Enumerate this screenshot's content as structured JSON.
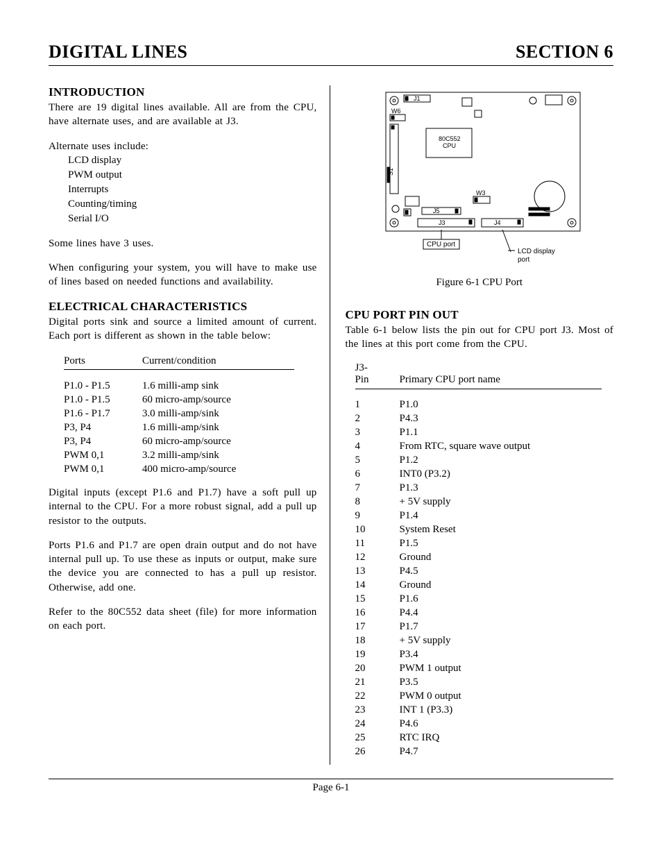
{
  "header": {
    "title_left": "DIGITAL LINES",
    "title_right": "SECTION 6"
  },
  "intro": {
    "heading": "INTRODUCTION",
    "p1": "There are 19 digital lines available.  All are from the CPU, have alternate uses,  and are available at J3.",
    "alt_intro": "Alternate uses include:",
    "alt_uses": [
      "LCD display",
      "PWM output",
      "Interrupts",
      "Counting/timing",
      "Serial I/O"
    ],
    "p2": "Some lines have 3 uses.",
    "p3": "When configuring your system, you will have to make use of lines based on needed functions and availability."
  },
  "elec": {
    "heading": "ELECTRICAL CHARACTERISTICS",
    "p1": "Digital ports sink and source a limited amount of current.  Each port is different as shown in the table below:",
    "table": {
      "columns": [
        "Ports",
        "Current/condition"
      ],
      "rows": [
        [
          "P1.0 - P1.5",
          "1.6 milli-amp sink"
        ],
        [
          "P1.0 - P1.5",
          "60 micro-amp/source"
        ],
        [
          "P1.6 - P1.7",
          "3.0 milli-amp/sink"
        ],
        [
          "P3, P4",
          "1.6 milli-amp/sink"
        ],
        [
          "P3, P4",
          "60 micro-amp/source"
        ],
        [
          "PWM 0,1",
          "3.2 milli-amp/sink"
        ],
        [
          "PWM 0,1",
          "400 micro-amp/source"
        ]
      ]
    },
    "p2": "Digital inputs (except P1.6 and P1.7) have a soft pull up internal to the CPU.  For a more robust signal, add a pull up resistor to the outputs.",
    "p3": "Ports P1.6 and P1.7 are open drain output and do not have internal pull up.  To use these as inputs or output, make sure the device you are connected to has a pull up resistor.  Otherwise, add one.",
    "p4": "Refer to the 80C552 data sheet (file) for more information on each port."
  },
  "figure": {
    "caption": "Figure 6-1 CPU Port",
    "labels": {
      "j1": "J1",
      "w6": "W6",
      "cpu": "80C552\nCPU",
      "s1": "S1",
      "w3": "W3",
      "j5": "J5",
      "j3": "J3",
      "j4": "J4",
      "cpuport": "CPU port",
      "lcd1": "LCD display",
      "lcd2": "port"
    }
  },
  "cpuport": {
    "heading": "CPU PORT PIN OUT",
    "p1": "Table 6-1 below lists the pin out for CPU port J3.  Most of the lines at this port come from the CPU.",
    "table": {
      "col1a": "J3-",
      "col1b": "Pin",
      "col2": "Primary CPU port name",
      "rows": [
        [
          "1",
          "P1.0"
        ],
        [
          "2",
          "P4.3"
        ],
        [
          "3",
          "P1.1"
        ],
        [
          "4",
          "From RTC, square wave output"
        ],
        [
          "5",
          "P1.2"
        ],
        [
          "6",
          "INT0 (P3.2)"
        ],
        [
          "7",
          "P1.3"
        ],
        [
          "8",
          "+ 5V supply"
        ],
        [
          "9",
          "P1.4"
        ],
        [
          "10",
          "System Reset"
        ],
        [
          "11",
          "P1.5"
        ],
        [
          "12",
          "Ground"
        ],
        [
          "13",
          "P4.5"
        ],
        [
          "14",
          "Ground"
        ],
        [
          "15",
          "P1.6"
        ],
        [
          "16",
          "P4.4"
        ],
        [
          "17",
          "P1.7"
        ],
        [
          "18",
          "+ 5V supply"
        ],
        [
          "19",
          "P3.4"
        ],
        [
          "20",
          "PWM 1 output"
        ],
        [
          "21",
          "P3.5"
        ],
        [
          "22",
          "PWM 0 output"
        ],
        [
          "23",
          "INT 1 (P3.3)"
        ],
        [
          "24",
          "P4.6"
        ],
        [
          "25",
          "RTC IRQ"
        ],
        [
          "26",
          "P4.7"
        ]
      ]
    }
  },
  "footer": {
    "page": "Page 6-1"
  }
}
